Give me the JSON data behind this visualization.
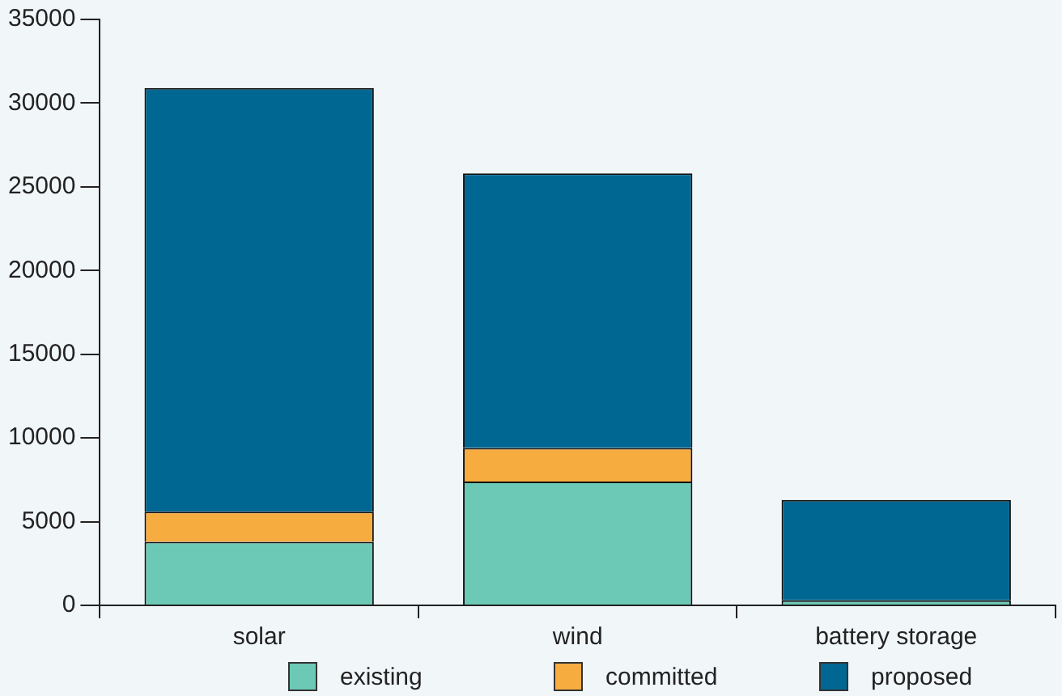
{
  "chart_data": {
    "type": "bar",
    "stacked": true,
    "categories": [
      "solar",
      "wind",
      "battery storage"
    ],
    "series": [
      {
        "name": "existing",
        "color": "#6cc9b6",
        "values": [
          3800,
          7400,
          300
        ]
      },
      {
        "name": "committed",
        "color": "#f7ac40",
        "values": [
          1800,
          2000,
          0
        ]
      },
      {
        "name": "proposed",
        "color": "#006792",
        "values": [
          25300,
          16400,
          6000
        ]
      }
    ],
    "ylim": [
      0,
      35000
    ],
    "yticks": [
      0,
      5000,
      10000,
      15000,
      20000,
      25000,
      30000,
      35000
    ],
    "grid": false,
    "legend": "bottom"
  }
}
